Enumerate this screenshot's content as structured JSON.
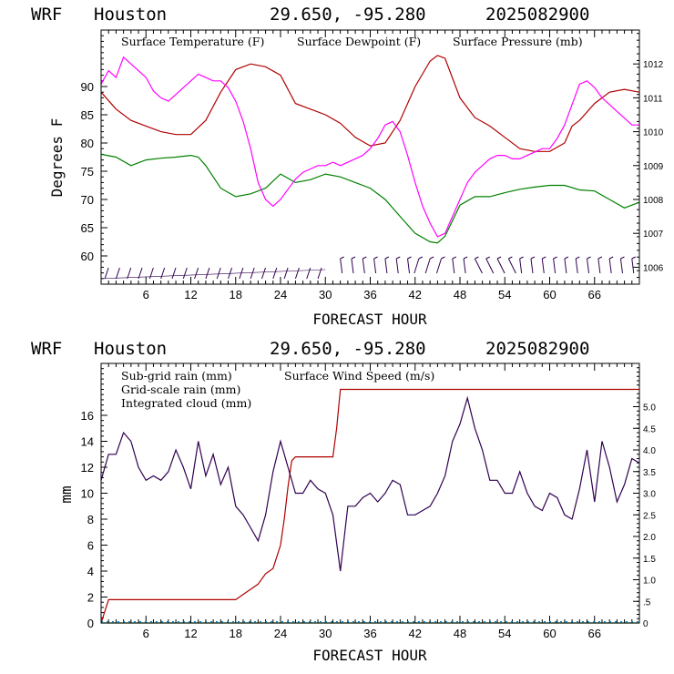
{
  "panels": [
    {
      "header": {
        "model": "WRF",
        "location": "Houston",
        "coords": "29.650, -95.280",
        "run": "2025082900"
      },
      "xlabel": "FORECAST HOUR",
      "ylabel": "Degrees F",
      "legend": [
        {
          "label": "Surface Temperature (F)",
          "color": "#b00000"
        },
        {
          "label": "Surface Dewpoint (F)",
          "color": "#008000"
        },
        {
          "label": "Surface Pressure (mb)",
          "color": "#ff00ff"
        }
      ]
    },
    {
      "header": {
        "model": "WRF",
        "location": "Houston",
        "coords": "29.650, -95.280",
        "run": "2025082900"
      },
      "xlabel": "FORECAST HOUR",
      "ylabel": "mm",
      "legend": [
        {
          "label": "Sub-grid rain (mm)",
          "color": "#b00000"
        },
        {
          "label": "Surface Wind Speed (m/s)",
          "color": "#300050"
        },
        {
          "label": "Grid-scale rain (mm)",
          "color": "#008000"
        },
        {
          "label": "Integrated cloud (mm)",
          "color": "#0080d0"
        }
      ]
    }
  ],
  "chart_data": [
    {
      "type": "line",
      "xlim": [
        0,
        72
      ],
      "xticks": [
        6,
        12,
        18,
        24,
        30,
        36,
        42,
        48,
        54,
        60,
        66
      ],
      "ylim": [
        55,
        100
      ],
      "yticks": [
        60,
        65,
        70,
        75,
        80,
        85,
        90
      ],
      "y2lim": [
        1005.5,
        1013
      ],
      "y2ticks": [
        1006,
        1007,
        1008,
        1009,
        1010,
        1011,
        1012
      ],
      "series": [
        {
          "name": "Surface Temperature (F)",
          "color": "#b00000",
          "axis": "left",
          "x": [
            0,
            2,
            4,
            6,
            8,
            10,
            12,
            14,
            16,
            18,
            20,
            22,
            24,
            26,
            28,
            30,
            32,
            34,
            36,
            38,
            40,
            42,
            44,
            45,
            46,
            48,
            50,
            52,
            54,
            56,
            58,
            60,
            62,
            63,
            64,
            66,
            68,
            70,
            72
          ],
          "y": [
            89,
            86,
            84,
            83,
            82,
            81.5,
            81.5,
            84,
            89,
            93,
            94,
            93.5,
            92,
            87,
            86,
            85,
            83.5,
            81,
            79.5,
            80,
            84,
            90,
            94.5,
            95.5,
            95,
            88,
            84.5,
            83,
            81,
            79,
            78.5,
            78.5,
            80,
            83,
            84,
            87,
            89,
            89.5,
            89
          ]
        },
        {
          "name": "Surface Dewpoint (F)",
          "color": "#008000",
          "axis": "left",
          "x": [
            0,
            2,
            4,
            6,
            8,
            10,
            12,
            13,
            14,
            16,
            18,
            20,
            22,
            24,
            26,
            28,
            30,
            32,
            34,
            36,
            38,
            40,
            42,
            44,
            45,
            46,
            48,
            50,
            52,
            54,
            56,
            58,
            60,
            62,
            64,
            66,
            68,
            70,
            72
          ],
          "y": [
            78,
            77.5,
            76,
            77,
            77.3,
            77.5,
            77.8,
            77.5,
            76,
            72,
            70.5,
            71,
            72,
            74.5,
            73,
            73.5,
            74.5,
            74,
            73,
            72,
            70,
            67,
            64,
            62.5,
            62.3,
            63.5,
            69,
            70.5,
            70.5,
            71.2,
            71.8,
            72.2,
            72.5,
            72.5,
            71.7,
            71.5,
            70,
            68.5,
            69.5
          ]
        },
        {
          "name": "Surface Pressure (mb)",
          "color": "#ff00ff",
          "axis": "right",
          "x": [
            0,
            1,
            2,
            3,
            4,
            5,
            6,
            7,
            8,
            9,
            10,
            11,
            12,
            13,
            14,
            15,
            16,
            17,
            18,
            19,
            20,
            21,
            22,
            23,
            24,
            25,
            26,
            27,
            28,
            29,
            30,
            31,
            32,
            33,
            34,
            35,
            36,
            37,
            38,
            39,
            40,
            41,
            42,
            43,
            44,
            45,
            46,
            47,
            48,
            49,
            50,
            51,
            52,
            53,
            54,
            55,
            56,
            57,
            58,
            59,
            60,
            61,
            62,
            63,
            64,
            65,
            66,
            67,
            68,
            69,
            70,
            71,
            72
          ],
          "y": [
            1011.4,
            1011.8,
            1011.6,
            1012.2,
            1012.0,
            1011.8,
            1011.6,
            1011.2,
            1011.0,
            1010.9,
            1011.1,
            1011.3,
            1011.5,
            1011.7,
            1011.6,
            1011.5,
            1011.5,
            1011.3,
            1010.9,
            1010.3,
            1009.5,
            1008.5,
            1008.0,
            1007.8,
            1008.0,
            1008.3,
            1008.6,
            1008.8,
            1008.9,
            1009.0,
            1009.0,
            1009.1,
            1009.0,
            1009.1,
            1009.2,
            1009.3,
            1009.5,
            1009.8,
            1010.2,
            1010.3,
            1010.0,
            1009.3,
            1008.5,
            1007.8,
            1007.3,
            1006.9,
            1007.0,
            1007.5,
            1008.0,
            1008.5,
            1008.8,
            1009.0,
            1009.2,
            1009.3,
            1009.3,
            1009.2,
            1009.2,
            1009.3,
            1009.4,
            1009.5,
            1009.5,
            1009.8,
            1010.2,
            1010.8,
            1011.4,
            1011.5,
            1011.3,
            1011.0,
            1010.8,
            1010.6,
            1010.4,
            1010.2,
            1010.2
          ]
        }
      ],
      "wind_barbs_visible": true
    },
    {
      "type": "line",
      "xlim": [
        0,
        72
      ],
      "xticks": [
        6,
        12,
        18,
        24,
        30,
        36,
        42,
        48,
        54,
        60,
        66
      ],
      "ylim": [
        0,
        20
      ],
      "yticks": [
        0,
        2,
        4,
        6,
        8,
        10,
        12,
        14,
        16
      ],
      "y2lim": [
        0,
        6
      ],
      "y2ticks": [
        0,
        0.5,
        1.0,
        1.5,
        2.0,
        2.5,
        3.0,
        3.5,
        4.0,
        4.5,
        5.0
      ],
      "y2ticklabels": [
        "0",
        ".5",
        "1.0",
        "1.5",
        "2.0",
        "2.5",
        "3.0",
        "3.5",
        "4.0",
        "4.5",
        "5.0"
      ],
      "series": [
        {
          "name": "Sub-grid rain (mm)",
          "color": "#b00000",
          "axis": "left",
          "x": [
            0,
            1,
            18,
            19,
            20,
            21,
            22,
            23,
            24,
            24.5,
            25,
            25.5,
            26,
            31,
            31.5,
            32,
            72
          ],
          "y": [
            0,
            1.8,
            1.8,
            2.2,
            2.6,
            3.0,
            3.8,
            4.2,
            6.0,
            8.0,
            10.5,
            12.5,
            12.8,
            12.8,
            15.0,
            18.0,
            18.0
          ]
        },
        {
          "name": "Surface Wind Speed (m/s)",
          "color": "#300050",
          "axis": "right",
          "x": [
            0,
            1,
            2,
            3,
            4,
            5,
            6,
            7,
            8,
            9,
            10,
            11,
            12,
            13,
            14,
            15,
            16,
            17,
            18,
            19,
            20,
            21,
            22,
            23,
            24,
            25,
            26,
            27,
            28,
            29,
            30,
            31,
            32,
            33,
            34,
            35,
            36,
            37,
            38,
            39,
            40,
            41,
            42,
            43,
            44,
            45,
            46,
            47,
            48,
            49,
            50,
            51,
            52,
            53,
            54,
            55,
            56,
            57,
            58,
            59,
            60,
            61,
            62,
            63,
            64,
            65,
            66,
            67,
            68,
            69,
            70,
            71,
            72
          ],
          "y": [
            3.3,
            3.9,
            3.9,
            4.4,
            4.2,
            3.6,
            3.3,
            3.4,
            3.3,
            3.5,
            4.0,
            3.6,
            3.1,
            4.2,
            3.4,
            3.9,
            3.2,
            3.6,
            2.7,
            2.5,
            2.2,
            1.9,
            2.5,
            3.5,
            4.2,
            3.6,
            3.0,
            3.0,
            3.3,
            3.1,
            3.0,
            2.5,
            1.2,
            2.7,
            2.7,
            2.9,
            3.0,
            2.8,
            3.0,
            3.3,
            3.2,
            2.5,
            2.5,
            2.6,
            2.7,
            3.0,
            3.4,
            4.2,
            4.6,
            5.2,
            4.5,
            4.0,
            3.3,
            3.3,
            3.0,
            3.0,
            3.5,
            3.0,
            2.7,
            2.6,
            3.0,
            2.9,
            2.5,
            2.4,
            3.1,
            4.0,
            2.8,
            4.2,
            3.6,
            2.8,
            3.2,
            3.8,
            3.7
          ]
        },
        {
          "name": "Grid-scale rain (mm)",
          "color": "#008000",
          "axis": "left",
          "x": [
            0,
            72
          ],
          "y": [
            0,
            0
          ]
        },
        {
          "name": "Integrated cloud (mm)",
          "color": "#0080d0",
          "axis": "left",
          "x": [
            0,
            72
          ],
          "y": [
            0.1,
            0.1
          ]
        }
      ]
    }
  ]
}
